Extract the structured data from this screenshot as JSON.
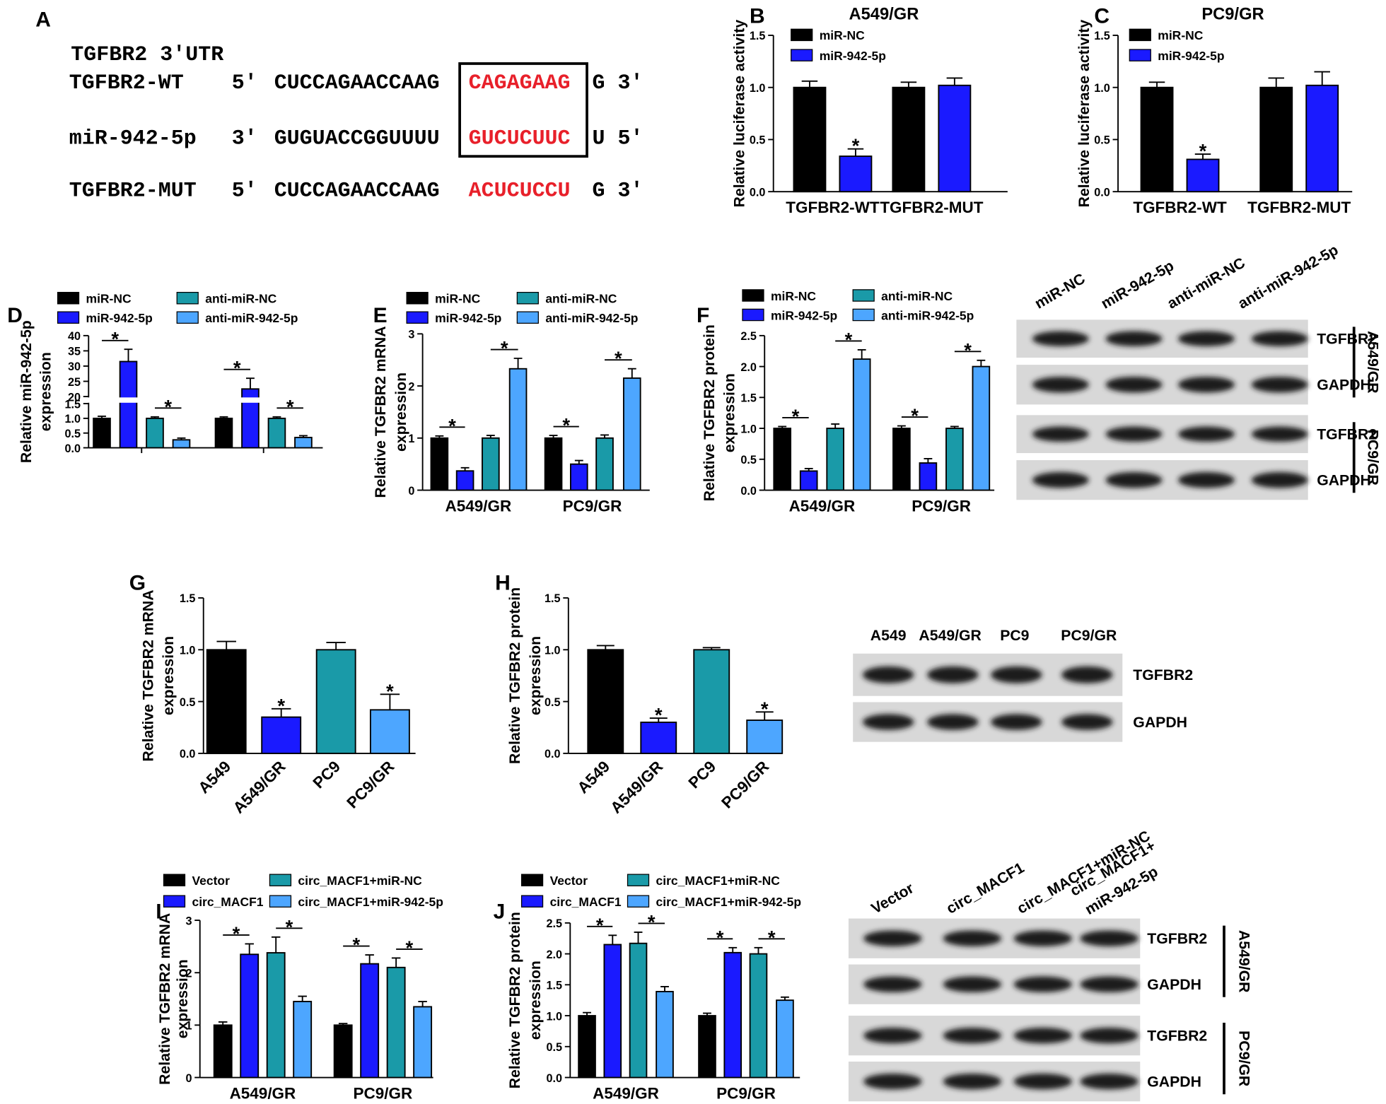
{
  "panel_a": {
    "label": "A",
    "title": "TGFBR2 3'UTR",
    "rows": [
      {
        "name": "TGFBR2-WT",
        "end5": "5'",
        "sequence": "CUCCAGAACCAAG",
        "site": "CAGAGAAG",
        "end3": "G 3'"
      },
      {
        "name": "miR-942-5p",
        "end5": "3'",
        "sequence": "GUGUACCGGUUUU",
        "site": "GUCUCUUC",
        "end3": "U 5'"
      },
      {
        "name": "TGFBR2-MUT",
        "end5": "5'",
        "sequence": "CUCCAGAACCAAG",
        "site": "ACUCUCCU",
        "end3": "G 3'"
      }
    ]
  },
  "chart_data": [
    {
      "type": "bar",
      "panel": "B",
      "title": "A549/GR",
      "ylabel": [
        "Relative luciferase activity"
      ],
      "categories": [
        "TGFBR2-WT",
        "TGFBR2-MUT"
      ],
      "series": [
        {
          "name": "miR-NC",
          "color": "#000000",
          "values": [
            1.0,
            1.0
          ],
          "errors": [
            0.06,
            0.05
          ]
        },
        {
          "name": "miR-942-5p",
          "color": "#1a1aff",
          "values": [
            0.34,
            1.02
          ],
          "errors": [
            0.07,
            0.07
          ],
          "significance": [
            "*",
            null
          ]
        }
      ],
      "ylim": [
        0,
        1.5
      ],
      "yticks": [
        {
          "value": 0,
          "label": "0.0"
        },
        {
          "value": 0.5,
          "label": "0.5"
        },
        {
          "value": 1,
          "label": "1.0"
        },
        {
          "value": 1.5,
          "label": "1.5"
        }
      ]
    },
    {
      "type": "bar",
      "panel": "C",
      "title": "PC9/GR",
      "ylabel": [
        "Relative luciferase activity"
      ],
      "categories": [
        "TGFBR2-WT",
        "TGFBR2-MUT"
      ],
      "series": [
        {
          "name": "miR-NC",
          "color": "#000000",
          "values": [
            1.0,
            1.0
          ],
          "errors": [
            0.05,
            0.09
          ]
        },
        {
          "name": "miR-942-5p",
          "color": "#1a1aff",
          "values": [
            0.31,
            1.02
          ],
          "errors": [
            0.05,
            0.13
          ],
          "significance": [
            "*",
            null
          ]
        }
      ],
      "ylim": [
        0,
        1.5
      ],
      "yticks": [
        {
          "value": 0,
          "label": "0.0"
        },
        {
          "value": 0.5,
          "label": "0.5"
        },
        {
          "value": 1,
          "label": "1.0"
        },
        {
          "value": 1.5,
          "label": "1.5"
        }
      ]
    },
    {
      "type": "bar",
      "panel": "D",
      "ylabel": [
        "Relative miR-942-5p",
        "expression"
      ],
      "categories": [
        null,
        null
      ],
      "brackets": true,
      "series": [
        {
          "name": "miR-NC",
          "color": "#000000",
          "values": [
            1.0,
            1.0
          ],
          "errors": [
            0.07,
            0.05
          ]
        },
        {
          "name": "miR-942-5p",
          "color": "#1a1aff",
          "values": [
            31.5,
            22.5
          ],
          "errors": [
            4.0,
            3.5
          ],
          "significance": [
            "*",
            "*"
          ]
        },
        {
          "name": "anti-miR-NC",
          "color": "#1a9aa8",
          "values": [
            1.0,
            1.0
          ],
          "errors": [
            0.05,
            0.05
          ]
        },
        {
          "name": "anti-miR-942-5p",
          "color": "#4da6ff",
          "values": [
            0.27,
            0.35
          ],
          "errors": [
            0.06,
            0.06
          ],
          "significance": [
            "*",
            "*"
          ]
        }
      ],
      "ylim": [
        0,
        40
      ],
      "ybreak": [
        1.5,
        20
      ],
      "yticks": [
        {
          "value": 0,
          "label": "0.0"
        },
        {
          "value": 0.5,
          "label": "0.5"
        },
        {
          "value": 1,
          "label": "1.0"
        },
        {
          "value": 1.5,
          "label": "1.5"
        },
        20,
        25,
        30,
        35,
        40
      ]
    },
    {
      "type": "bar",
      "panel": "E",
      "ylabel": [
        "Relative TGFBR2 mRNA",
        "expression"
      ],
      "categories": [
        "A549/GR",
        "PC9/GR"
      ],
      "brackets": true,
      "series": [
        {
          "name": "miR-NC",
          "color": "#000000",
          "values": [
            1.0,
            1.0
          ],
          "errors": [
            0.04,
            0.05
          ]
        },
        {
          "name": "miR-942-5p",
          "color": "#1a1aff",
          "values": [
            0.37,
            0.5
          ],
          "errors": [
            0.06,
            0.07
          ],
          "significance": [
            "*",
            "*"
          ]
        },
        {
          "name": "anti-miR-NC",
          "color": "#1a9aa8",
          "values": [
            1.0,
            1.0
          ],
          "errors": [
            0.05,
            0.06
          ]
        },
        {
          "name": "anti-miR-942-5p",
          "color": "#4da6ff",
          "values": [
            2.33,
            2.15
          ],
          "errors": [
            0.2,
            0.18
          ],
          "significance": [
            "*",
            "*"
          ]
        }
      ],
      "ylim": [
        0,
        3
      ],
      "yticks": [
        0,
        1,
        2,
        3
      ]
    },
    {
      "type": "bar",
      "panel": "F",
      "ylabel": [
        "Relative TGFBR2 protein",
        "expression"
      ],
      "categories": [
        "A549/GR",
        "PC9/GR"
      ],
      "brackets": true,
      "series": [
        {
          "name": "miR-NC",
          "color": "#000000",
          "values": [
            1.0,
            1.0
          ],
          "errors": [
            0.03,
            0.04
          ]
        },
        {
          "name": "miR-942-5p",
          "color": "#1a1aff",
          "values": [
            0.31,
            0.44
          ],
          "errors": [
            0.04,
            0.07
          ],
          "significance": [
            "*",
            "*"
          ]
        },
        {
          "name": "anti-miR-NC",
          "color": "#1a9aa8",
          "values": [
            1.0,
            1.0
          ],
          "errors": [
            0.07,
            0.03
          ]
        },
        {
          "name": "anti-miR-942-5p",
          "color": "#4da6ff",
          "values": [
            2.12,
            2.0
          ],
          "errors": [
            0.15,
            0.1
          ],
          "significance": [
            "*",
            "*"
          ]
        }
      ],
      "ylim": [
        0,
        2.5
      ],
      "yticks": [
        {
          "value": 0,
          "label": "0.0"
        },
        {
          "value": 0.5,
          "label": "0.5"
        },
        {
          "value": 1,
          "label": "1.0"
        },
        {
          "value": 1.5,
          "label": "1.5"
        },
        {
          "value": 2,
          "label": "2.0"
        },
        {
          "value": 2.5,
          "label": "2.5"
        }
      ]
    },
    {
      "type": "bar",
      "panel": "G",
      "ylabel": [
        "Relative TGFBR2 mRNA",
        "expression"
      ],
      "categories": [
        "A549",
        "A549/GR",
        "PC9",
        "PC9/GR"
      ],
      "colors": [
        "#000000",
        "#1a1aff",
        "#1a9aa8",
        "#4da6ff"
      ],
      "values": [
        1.0,
        0.35,
        1.0,
        0.42
      ],
      "errors": [
        0.08,
        0.08,
        0.07,
        0.15
      ],
      "significance": [
        null,
        "*",
        null,
        "*"
      ],
      "ylim": [
        0,
        1.5
      ],
      "yticks": [
        {
          "value": 0,
          "label": "0.0"
        },
        {
          "value": 0.5,
          "label": "0.5"
        },
        {
          "value": 1,
          "label": "1.0"
        },
        {
          "value": 1.5,
          "label": "1.5"
        }
      ]
    },
    {
      "type": "bar",
      "panel": "H",
      "ylabel": [
        "Relative TGFBR2 protein",
        "expression"
      ],
      "categories": [
        "A549",
        "A549/GR",
        "PC9",
        "PC9/GR"
      ],
      "colors": [
        "#000000",
        "#1a1aff",
        "#1a9aa8",
        "#4da6ff"
      ],
      "values": [
        1.0,
        0.3,
        1.0,
        0.32
      ],
      "errors": [
        0.04,
        0.04,
        0.02,
        0.08
      ],
      "significance": [
        null,
        "*",
        null,
        "*"
      ],
      "ylim": [
        0,
        1.5
      ],
      "yticks": [
        {
          "value": 0,
          "label": "0.0"
        },
        {
          "value": 0.5,
          "label": "0.5"
        },
        {
          "value": 1,
          "label": "1.0"
        },
        {
          "value": 1.5,
          "label": "1.5"
        }
      ]
    },
    {
      "type": "bar",
      "panel": "I",
      "ylabel": [
        "Relative TGFBR2 mRNA",
        "expression"
      ],
      "categories": [
        "A549/GR",
        "PC9/GR"
      ],
      "brackets": true,
      "series": [
        {
          "name": "Vector",
          "color": "#000000",
          "values": [
            1.0,
            1.0
          ],
          "errors": [
            0.06,
            0.03
          ]
        },
        {
          "name": "circ_MACF1",
          "color": "#1a1aff",
          "values": [
            2.35,
            2.17
          ],
          "errors": [
            0.2,
            0.17
          ],
          "significance": [
            "*",
            "*"
          ]
        },
        {
          "name": "circ_MACF1+miR-NC",
          "color": "#1a9aa8",
          "values": [
            2.38,
            2.1
          ],
          "errors": [
            0.3,
            0.18
          ]
        },
        {
          "name": "circ_MACF1+miR-942-5p",
          "color": "#4da6ff",
          "values": [
            1.45,
            1.35
          ],
          "errors": [
            0.1,
            0.1
          ],
          "significance": [
            "*",
            "*"
          ]
        }
      ],
      "ylim": [
        0,
        3
      ],
      "yticks": [
        0,
        1,
        2,
        3
      ]
    },
    {
      "type": "bar",
      "panel": "J",
      "ylabel": [
        "Relative TGFBR2 protein",
        "expression"
      ],
      "categories": [
        "A549/GR",
        "PC9/GR"
      ],
      "brackets": true,
      "series": [
        {
          "name": "Vector",
          "color": "#000000",
          "values": [
            1.0,
            1.0
          ],
          "errors": [
            0.05,
            0.04
          ]
        },
        {
          "name": "circ_MACF1",
          "color": "#1a1aff",
          "values": [
            2.15,
            2.02
          ],
          "errors": [
            0.15,
            0.08
          ],
          "significance": [
            "*",
            "*"
          ]
        },
        {
          "name": "circ_MACF1+miR-NC",
          "color": "#1a9aa8",
          "values": [
            2.17,
            2.0
          ],
          "errors": [
            0.18,
            0.1
          ]
        },
        {
          "name": "circ_MACF1+miR-942-5p",
          "color": "#4da6ff",
          "values": [
            1.39,
            1.25
          ],
          "errors": [
            0.08,
            0.05
          ],
          "significance": [
            "*",
            "*"
          ]
        }
      ],
      "ylim": [
        0,
        2.5
      ],
      "yticks": [
        {
          "value": 0,
          "label": "0.0"
        },
        {
          "value": 0.5,
          "label": "0.5"
        },
        {
          "value": 1,
          "label": "1.0"
        },
        {
          "value": 1.5,
          "label": "1.5"
        },
        {
          "value": 2,
          "label": "2.0"
        },
        {
          "value": 2.5,
          "label": "2.5"
        }
      ]
    }
  ],
  "blots": [
    {
      "columns": [
        "miR-NC",
        "miR-942-5p",
        "anti-miR-NC",
        "anti-miR-942-5p"
      ],
      "rows": [
        "TGFBR2",
        "GAPDH",
        "TGFBR2",
        "GAPDH"
      ],
      "groups": [
        "A549/GR",
        "PC9/GR"
      ]
    },
    {
      "columns": [
        "A549",
        "A549/GR",
        "PC9",
        "PC9/GR"
      ],
      "rows": [
        "TGFBR2",
        "GAPDH"
      ]
    },
    {
      "columns": [
        "Vector",
        "circ_MACF1",
        "circ_MACF1+miR-NC",
        [
          "circ_MACF1+",
          "miR-942-5p"
        ]
      ],
      "rows": [
        "TGFBR2",
        "GAPDH",
        "TGFBR2",
        "GAPDH"
      ],
      "groups": [
        "A549/GR",
        "PC9/GR"
      ]
    }
  ]
}
